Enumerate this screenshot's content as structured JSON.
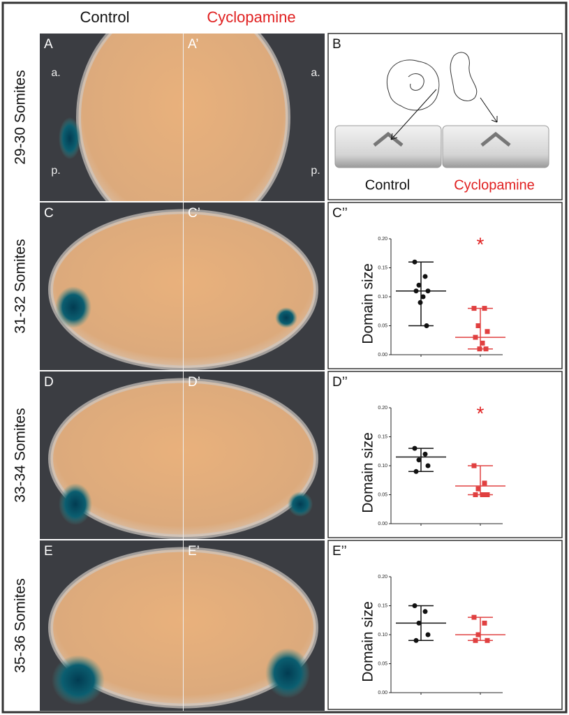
{
  "columns": [
    {
      "text": "Control",
      "color": "#111111"
    },
    {
      "text": "Cyclopamine",
      "color": "#e02020"
    }
  ],
  "rows": [
    {
      "label": "29-30 Somites",
      "panels": [
        "A",
        "A’",
        "B"
      ],
      "marks": [
        "a.",
        "p.",
        "a.",
        "p."
      ]
    },
    {
      "label": "31-32 Somites",
      "panels": [
        "C",
        "C’",
        "C’’"
      ]
    },
    {
      "label": "33-34 Somites",
      "panels": [
        "D",
        "D’",
        "D’’"
      ]
    },
    {
      "label": "35-36 Somites",
      "panels": [
        "E",
        "E’",
        "E’’"
      ]
    }
  ],
  "panel_b": {
    "labels": [
      {
        "text": "Control",
        "color": "#111111"
      },
      {
        "text": "Cyclopamine",
        "color": "#e02020"
      }
    ]
  },
  "charts": [
    {
      "type": "scatter",
      "ylabel": "Domain size",
      "ylim": [
        0,
        0.2
      ],
      "yticks": [
        {
          "value": 0,
          "label": "0.00"
        },
        {
          "value": 0.05,
          "label": "0.05"
        },
        {
          "value": 0.1,
          "label": "0.10"
        },
        {
          "value": 0.15,
          "label": "0.15"
        },
        {
          "value": 0.2,
          "label": "0.20"
        }
      ],
      "annotation": {
        "text": "*",
        "color": "#e02020"
      },
      "series": [
        {
          "color": "#111111",
          "marker": "circle",
          "values": [
            0.16,
            0.135,
            0.12,
            0.11,
            0.11,
            0.1,
            0.09,
            0.05
          ],
          "center": 0.11,
          "range": [
            0.05,
            0.16
          ]
        },
        {
          "color": "#e04040",
          "marker": "square",
          "values": [
            0.08,
            0.08,
            0.05,
            0.04,
            0.03,
            0.02,
            0.01,
            0.01
          ],
          "center": 0.03,
          "range": [
            0.01,
            0.08
          ]
        }
      ]
    },
    {
      "type": "scatter",
      "ylabel": "Domain size",
      "ylim": [
        0,
        0.2
      ],
      "yticks": [
        {
          "value": 0,
          "label": "0.00"
        },
        {
          "value": 0.05,
          "label": "0.05"
        },
        {
          "value": 0.1,
          "label": "0.10"
        },
        {
          "value": 0.15,
          "label": "0.15"
        },
        {
          "value": 0.2,
          "label": "0.20"
        }
      ],
      "annotation": {
        "text": "*",
        "color": "#e02020"
      },
      "series": [
        {
          "color": "#111111",
          "marker": "circle",
          "values": [
            0.13,
            0.12,
            0.11,
            0.1,
            0.09
          ],
          "center": 0.115,
          "range": [
            0.09,
            0.13
          ]
        },
        {
          "color": "#e04040",
          "marker": "square",
          "values": [
            0.1,
            0.07,
            0.06,
            0.05,
            0.05,
            0.05
          ],
          "center": 0.065,
          "range": [
            0.05,
            0.1
          ]
        }
      ]
    },
    {
      "type": "scatter",
      "ylabel": "Domain size",
      "ylim": [
        0,
        0.2
      ],
      "yticks": [
        {
          "value": 0,
          "label": "0.00"
        },
        {
          "value": 0.05,
          "label": "0.05"
        },
        {
          "value": 0.1,
          "label": "0.10"
        },
        {
          "value": 0.15,
          "label": "0.15"
        },
        {
          "value": 0.2,
          "label": "0.20"
        }
      ],
      "series": [
        {
          "color": "#111111",
          "marker": "circle",
          "values": [
            0.15,
            0.14,
            0.12,
            0.1,
            0.09
          ],
          "center": 0.12,
          "range": [
            0.09,
            0.15
          ]
        },
        {
          "color": "#e04040",
          "marker": "square",
          "values": [
            0.13,
            0.12,
            0.1,
            0.09,
            0.09
          ],
          "center": 0.1,
          "range": [
            0.09,
            0.13
          ]
        }
      ]
    }
  ]
}
